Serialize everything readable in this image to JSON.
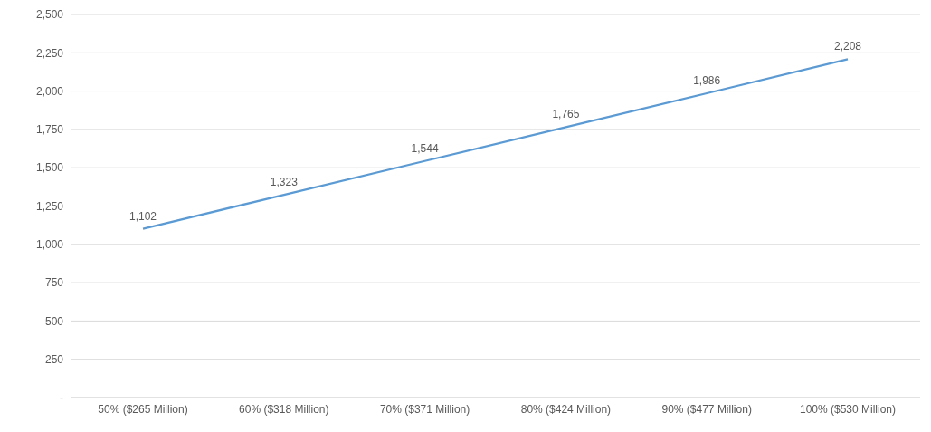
{
  "chart_data": {
    "type": "line",
    "categories": [
      "50% ($265 Million)",
      "60% ($318 Million)",
      "70% ($371 Million)",
      "80% ($424 Million)",
      "90% ($477 Million)",
      "100% ($530 Million)"
    ],
    "values": [
      1102,
      1323,
      1544,
      1765,
      1986,
      2208
    ],
    "value_labels": [
      "1,102",
      "1,323",
      "1,544",
      "1,765",
      "1,986",
      "2,208"
    ],
    "color": "#5b9bd5",
    "ylim": [
      0,
      2500
    ],
    "yticks": [
      {
        "value": 0,
        "label": "-"
      },
      {
        "value": 250,
        "label": "250"
      },
      {
        "value": 500,
        "label": "500"
      },
      {
        "value": 750,
        "label": "750"
      },
      {
        "value": 1000,
        "label": "1,000"
      },
      {
        "value": 1250,
        "label": "1,250"
      },
      {
        "value": 1500,
        "label": "1,500"
      },
      {
        "value": 1750,
        "label": "1,750"
      },
      {
        "value": 2000,
        "label": "2,000"
      },
      {
        "value": 2250,
        "label": "2,250"
      },
      {
        "value": 2500,
        "label": "2,500"
      }
    ],
    "grid": "y"
  }
}
